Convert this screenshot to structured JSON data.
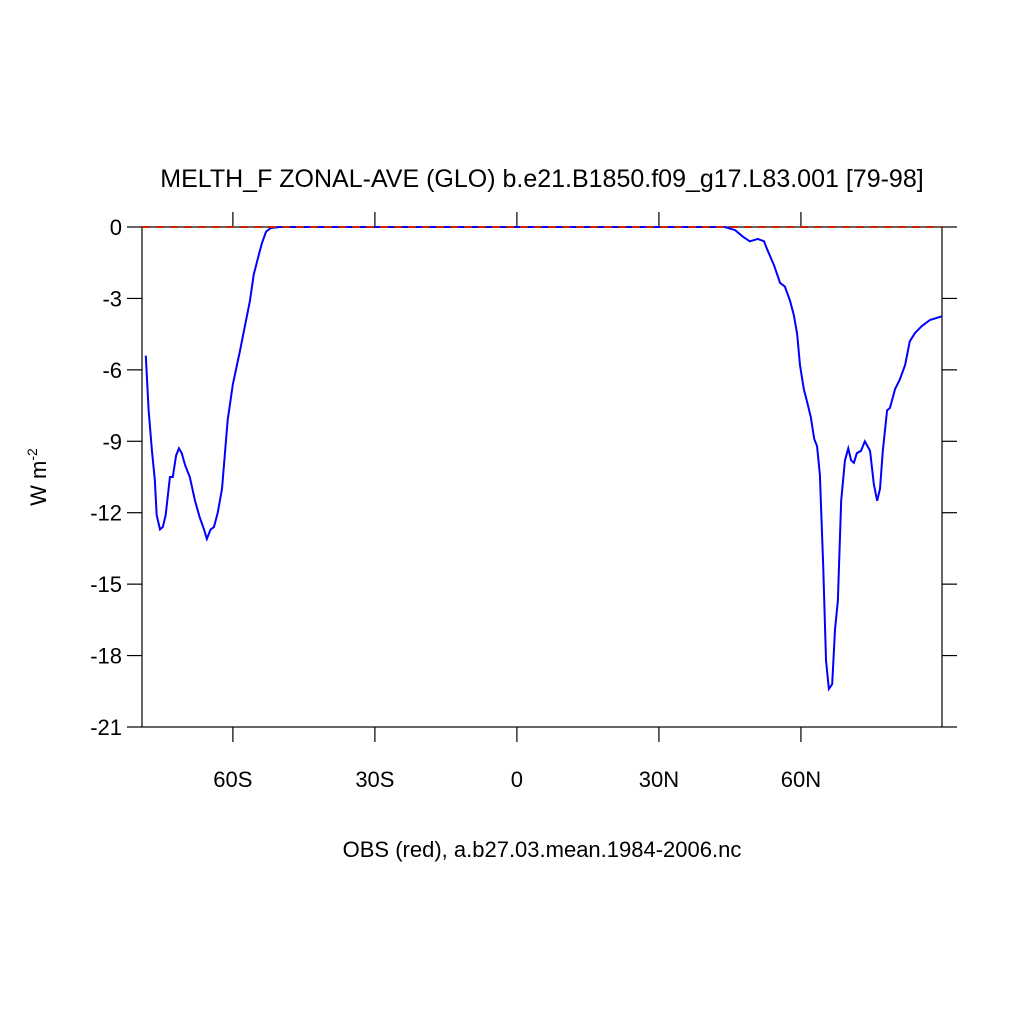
{
  "chart_data": {
    "type": "line",
    "title": "MELTH_F ZONAL-AVE (GLO) b.e21.B1850.f09_g17.L83.001 [79-98]",
    "subtitle": "OBS (red), a.b27.03.mean.1984-2006.nc",
    "y_label": {
      "text": "W m",
      "superscript": "-2"
    },
    "xlim": [
      -79.2,
      89.8
    ],
    "ylim": [
      -21,
      0
    ],
    "xticks": [
      {
        "value": -60,
        "label": "60S"
      },
      {
        "value": -30,
        "label": "30S"
      },
      0,
      {
        "value": 30,
        "label": "30N"
      },
      {
        "value": 60,
        "label": "60N"
      }
    ],
    "yticks": [
      0,
      -3,
      -6,
      -9,
      -12,
      -15,
      -18,
      -21
    ],
    "series": [
      {
        "color": "#0000ff",
        "dash": false,
        "x": [
          -78.4,
          -77.8,
          -77.1,
          -76.5,
          -76.1,
          -75.4,
          -74.8,
          -74.2,
          -73.3,
          -72.7,
          -72.0,
          -71.4,
          -70.8,
          -70.1,
          -69.1,
          -68.0,
          -67.0,
          -66.1,
          -65.5,
          -64.7,
          -64.0,
          -63.2,
          -62.3,
          -61.1,
          -60.0,
          -58.5,
          -57.3,
          -56.4,
          -55.6,
          -54.7,
          -53.9,
          -53.0,
          -52.0,
          -50.1,
          43.9,
          46.1,
          47.7,
          49.2,
          50.9,
          52.2,
          53.0,
          54.3,
          55.6,
          56.6,
          57.7,
          58.5,
          59.2,
          59.8,
          60.6,
          61.5,
          62.1,
          62.8,
          63.4,
          64.0,
          64.7,
          65.3,
          65.9,
          66.6,
          67.2,
          67.8,
          68.5,
          69.3,
          70.0,
          70.6,
          71.2,
          71.8,
          72.7,
          73.5,
          74.6,
          75.4,
          76.1,
          76.7,
          77.3,
          78.2,
          78.8,
          79.9,
          80.9,
          82.0,
          83.0,
          84.1,
          85.6,
          87.3,
          89.8
        ],
        "values": [
          -5.4,
          -7.7,
          -9.4,
          -10.6,
          -12.1,
          -12.7,
          -12.6,
          -12.1,
          -10.5,
          -10.5,
          -9.6,
          -9.3,
          -9.5,
          -10.0,
          -10.5,
          -11.5,
          -12.2,
          -12.7,
          -13.1,
          -12.7,
          -12.6,
          -12.0,
          -11.0,
          -8.1,
          -6.6,
          -5.2,
          -4.0,
          -3.1,
          -2.0,
          -1.3,
          -0.7,
          -0.2,
          -0.04,
          0,
          0,
          -0.13,
          -0.4,
          -0.6,
          -0.5,
          -0.6,
          -1.0,
          -1.6,
          -2.35,
          -2.5,
          -3.1,
          -3.7,
          -4.5,
          -5.8,
          -6.8,
          -7.5,
          -8.0,
          -8.9,
          -9.2,
          -10.4,
          -14.2,
          -18.2,
          -19.4,
          -19.2,
          -16.9,
          -15.7,
          -11.5,
          -9.8,
          -9.3,
          -9.8,
          -9.9,
          -9.5,
          -9.4,
          -9.0,
          -9.4,
          -10.8,
          -11.5,
          -11.0,
          -9.4,
          -7.7,
          -7.6,
          -6.8,
          -6.4,
          -5.8,
          -4.8,
          -4.45,
          -4.15,
          -3.9,
          -3.75
        ]
      },
      {
        "color": "#cc2200",
        "dash": true,
        "x": [
          -79.2,
          89.8
        ],
        "values": [
          0,
          0
        ]
      }
    ]
  }
}
